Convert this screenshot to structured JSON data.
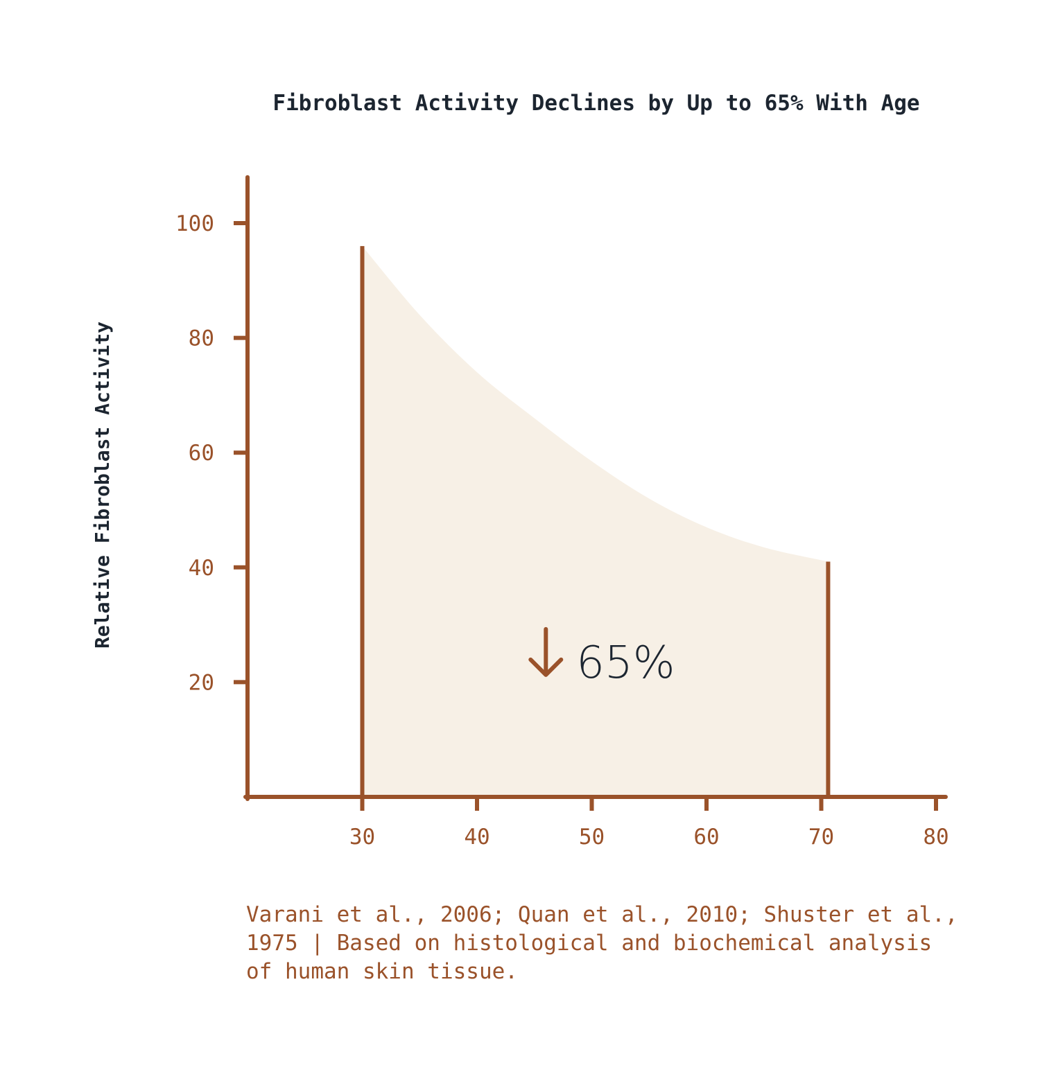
{
  "colors": {
    "axis": "#9a522a",
    "fill": "#f7f0e6",
    "text_dark": "#1c2530",
    "tick_text": "#9a522a"
  },
  "chart_data": {
    "type": "area",
    "title": "Fibroblast Activity Declines by Up to 65% With Age",
    "ylabel": "Relative Fibroblast Activity",
    "xlabel": "",
    "xlim": [
      20,
      80
    ],
    "ylim": [
      0,
      108
    ],
    "x_ticks": [
      30,
      40,
      50,
      60,
      70,
      80
    ],
    "y_ticks": [
      20,
      40,
      60,
      80,
      100
    ],
    "grid": false,
    "x": [
      30,
      35,
      40,
      45,
      50,
      55,
      60,
      65,
      70.6
    ],
    "y": [
      96,
      84,
      74,
      66,
      58.5,
      52,
      47,
      43.5,
      41
    ],
    "annotation": {
      "text": "65%",
      "arrow": "down-arrow-icon",
      "x": 46,
      "y": 22
    },
    "source": "Varani et al., 2006; Quan et al., 2010; Shuster et al., 1975 | Based on histological and biochemical analysis of human skin tissue."
  }
}
